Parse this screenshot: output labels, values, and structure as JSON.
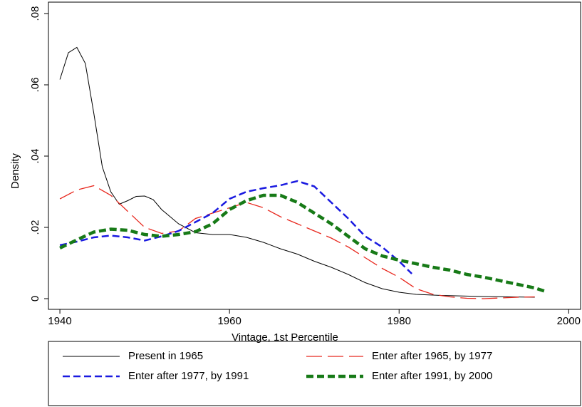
{
  "chart_data": {
    "type": "line",
    "xlabel": "Vintage, 1st Percentile",
    "ylabel": "Density",
    "xlim": [
      1938.65,
      2001.4
    ],
    "ylim": [
      -0.003,
      0.0832
    ],
    "xticks": [
      1940,
      1960,
      1980,
      2000
    ],
    "yticks": [
      0,
      {
        "value": 0.02,
        "label": ".02"
      },
      {
        "value": 0.04,
        "label": ".04"
      },
      {
        "value": 0.06,
        "label": ".06"
      },
      {
        "value": 0.08,
        "label": ".08"
      }
    ],
    "grid": false,
    "legend": "bottom",
    "series": [
      {
        "name": "Present in 1965",
        "color": "#000000",
        "dash": "solid",
        "width": 1,
        "x": [
          1940,
          1941,
          1942,
          1943,
          1944,
          1945,
          1946,
          1947,
          1948,
          1949,
          1950,
          1951,
          1952,
          1954,
          1956,
          1958,
          1960,
          1962,
          1964,
          1966,
          1968,
          1970,
          1972,
          1974,
          1976,
          1978,
          1980,
          1982,
          1985,
          1990,
          1996
        ],
        "values": [
          0.0615,
          0.069,
          0.0705,
          0.066,
          0.052,
          0.037,
          0.03,
          0.0265,
          0.0275,
          0.0287,
          0.0288,
          0.0278,
          0.025,
          0.021,
          0.0185,
          0.018,
          0.018,
          0.0172,
          0.0158,
          0.014,
          0.0125,
          0.0105,
          0.0088,
          0.0068,
          0.0045,
          0.0028,
          0.0018,
          0.0012,
          0.0009,
          0.0006,
          0.0004
        ]
      },
      {
        "name": "Enter after 1965, by 1977",
        "color": "#e8281e",
        "dash": "longdash",
        "width": 1.3,
        "x": [
          1940,
          1942,
          1944,
          1946,
          1948,
          1950,
          1952,
          1954,
          1956,
          1958,
          1960,
          1962,
          1964,
          1966,
          1968,
          1970,
          1972,
          1974,
          1976,
          1978,
          1980,
          1982,
          1984,
          1986,
          1988,
          1990,
          1992,
          1994,
          1996
        ],
        "values": [
          0.028,
          0.0305,
          0.0317,
          0.029,
          0.0245,
          0.02,
          0.0183,
          0.019,
          0.0225,
          0.024,
          0.0255,
          0.027,
          0.0255,
          0.023,
          0.021,
          0.019,
          0.017,
          0.0145,
          0.0115,
          0.0085,
          0.006,
          0.0028,
          0.0012,
          0.0005,
          0.0001,
          0,
          0.0002,
          0.0004,
          0.0005
        ]
      },
      {
        "name": "Enter after 1977, by 1991",
        "color": "#1a1ae0",
        "dash": "dash",
        "width": 2.5,
        "x": [
          1940,
          1942,
          1944,
          1946,
          1948,
          1950,
          1952,
          1954,
          1956,
          1958,
          1960,
          1962,
          1964,
          1966,
          1968,
          1970,
          1972,
          1974,
          1976,
          1978,
          1980,
          1981.5
        ],
        "values": [
          0.015,
          0.016,
          0.0172,
          0.0177,
          0.0172,
          0.0163,
          0.0175,
          0.019,
          0.0215,
          0.024,
          0.028,
          0.03,
          0.031,
          0.0318,
          0.033,
          0.0315,
          0.027,
          0.0225,
          0.0175,
          0.0145,
          0.0105,
          0.007
        ]
      },
      {
        "name": "Enter after 1991, by 2000",
        "color": "#177a17",
        "dash": "dash",
        "width": 4.5,
        "x": [
          1940,
          1942,
          1944,
          1946,
          1948,
          1950,
          1952,
          1954,
          1956,
          1958,
          1960,
          1962,
          1964,
          1966,
          1968,
          1970,
          1972,
          1974,
          1976,
          1978,
          1980,
          1982,
          1984,
          1986,
          1988,
          1990,
          1992,
          1994,
          1996,
          1997.3
        ],
        "values": [
          0.0142,
          0.0165,
          0.0187,
          0.0195,
          0.0192,
          0.018,
          0.0175,
          0.018,
          0.0188,
          0.021,
          0.025,
          0.0275,
          0.029,
          0.029,
          0.027,
          0.024,
          0.021,
          0.0175,
          0.014,
          0.012,
          0.0108,
          0.0098,
          0.0088,
          0.008,
          0.0068,
          0.006,
          0.005,
          0.004,
          0.003,
          0.002
        ]
      }
    ]
  }
}
